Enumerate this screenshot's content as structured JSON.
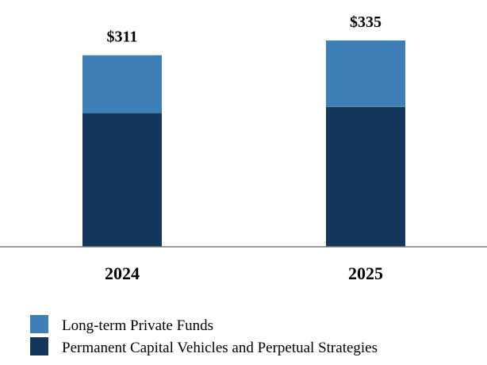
{
  "chart_data": {
    "type": "bar",
    "stacked": true,
    "categories": [
      "2024",
      "2025"
    ],
    "series": [
      {
        "name": "Permanent Capital Vehicles and Perpetual Strategies",
        "values": [
          217,
          227
        ],
        "color": "#12375a"
      },
      {
        "name": "Long-term Private Funds",
        "values": [
          94,
          108
        ],
        "color": "#3d7fb6"
      }
    ],
    "totals": [
      311,
      335
    ],
    "total_labels": [
      "$311",
      "$335"
    ],
    "title": "",
    "xlabel": "",
    "ylabel": "",
    "ylim": [
      0,
      335
    ],
    "grid": false,
    "legend": {
      "position": "bottom-left",
      "entries": [
        "Long-term Private Funds",
        "Permanent Capital Vehicles and Perpetual Strategies"
      ]
    }
  }
}
